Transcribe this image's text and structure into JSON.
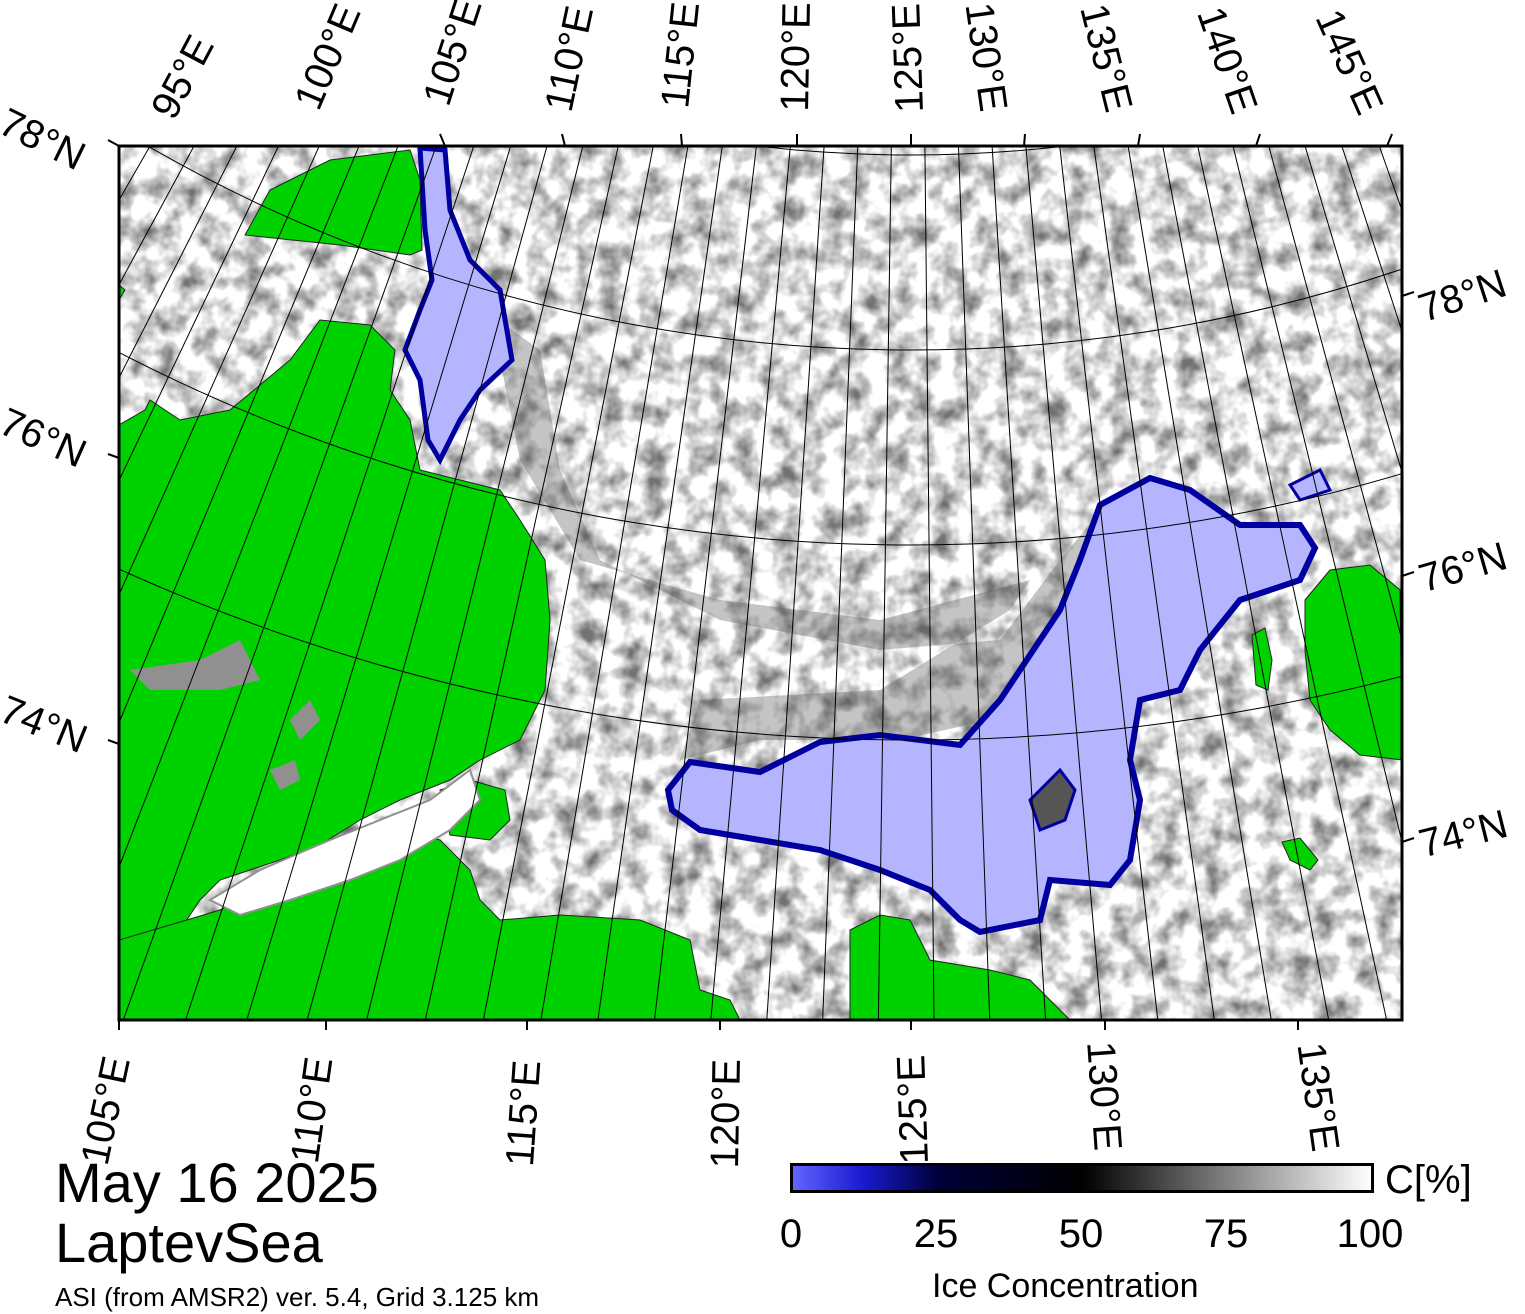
{
  "title": {
    "date": "May 16 2025",
    "region": "LaptevSea"
  },
  "subtitle": "ASI (from AMSR2) ver. 5.4,  Grid 3.125 km",
  "map": {
    "top_lon_labels": [
      "95°E",
      "100°E",
      "105°E",
      "110°E",
      "115°E",
      "120°E",
      "125°E",
      "130°E",
      "135°E",
      "140°E",
      "145°E"
    ],
    "bottom_lon_labels": [
      "105°E",
      "110°E",
      "115°E",
      "120°E",
      "125°E",
      "130°E",
      "135°E"
    ],
    "left_lat_labels": [
      "78°N",
      "76°N",
      "74°N"
    ],
    "right_lat_labels": [
      "78°N",
      "76°N",
      "74°N"
    ],
    "colors": {
      "land": "#00d200",
      "coast_gray": "#909090",
      "open_water": "#b4b4ff",
      "ice_edge": "#0000a0",
      "frame": "#000000"
    }
  },
  "colorbar": {
    "ticks": [
      "0",
      "25",
      "50",
      "75",
      "100"
    ],
    "unit": "C[%]",
    "caption": "Ice Concentration"
  }
}
